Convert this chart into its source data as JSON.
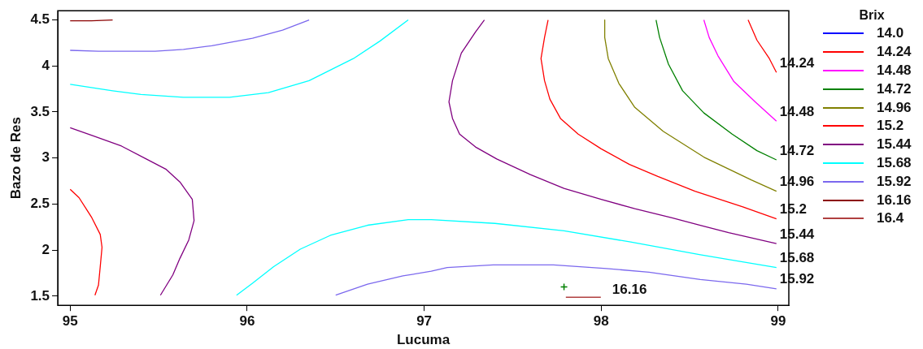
{
  "chart_data": {
    "type": "line",
    "xlabel": "Lucuma",
    "ylabel": "Bazo de Res",
    "legend_title": "Brix",
    "legend": "right",
    "grid": false,
    "xlim": [
      94.93,
      99.06
    ],
    "ylim": [
      1.4,
      4.6
    ],
    "xticks": [
      95,
      96,
      97,
      98,
      99
    ],
    "yticks": [
      1.5,
      2,
      2.5,
      3,
      3.5,
      4,
      4.5
    ],
    "series": [
      {
        "name": "14.0",
        "color": "#0000ff"
      },
      {
        "name": "14.24",
        "color": "#ff0000",
        "x": [
          98.83,
          98.88,
          98.95,
          98.99
        ],
        "values": [
          4.5,
          4.28,
          4.08,
          3.93
        ]
      },
      {
        "name": "14.48",
        "color": "#ff00ff",
        "x": [
          98.58,
          98.61,
          98.66,
          98.75,
          98.87,
          98.99
        ],
        "values": [
          4.5,
          4.31,
          4.11,
          3.83,
          3.61,
          3.4
        ]
      },
      {
        "name": "14.72",
        "color": "#008000",
        "x": [
          98.31,
          98.33,
          98.38,
          98.46,
          98.58,
          98.74,
          98.88,
          98.99
        ],
        "values": [
          4.5,
          4.31,
          4.02,
          3.73,
          3.49,
          3.26,
          3.08,
          2.98
        ]
      },
      {
        "name": "14.96",
        "color": "#808000",
        "x": [
          98.02,
          98.02,
          98.04,
          98.1,
          98.19,
          98.35,
          98.58,
          98.85,
          98.99
        ],
        "values": [
          4.5,
          4.31,
          4.08,
          3.81,
          3.55,
          3.29,
          3.01,
          2.76,
          2.64
        ]
      },
      {
        "name": "15.2",
        "color": "#ff0000",
        "x": [
          95.0,
          95.05,
          95.12,
          95.17,
          95.18,
          95.17,
          95.16,
          95.14,
          null,
          97.7,
          97.68,
          97.66,
          97.68,
          97.71,
          97.77,
          97.87,
          98.0,
          98.16,
          98.32,
          98.53,
          98.8,
          98.99
        ],
        "values": [
          2.66,
          2.57,
          2.36,
          2.17,
          2.03,
          1.82,
          1.62,
          1.51,
          null,
          4.5,
          4.31,
          4.08,
          3.84,
          3.64,
          3.43,
          3.26,
          3.1,
          2.93,
          2.8,
          2.64,
          2.47,
          2.34
        ]
      },
      {
        "name": "15.44",
        "color": "#800080",
        "x": [
          95.0,
          95.13,
          95.29,
          95.43,
          95.54,
          95.62,
          95.69,
          95.7,
          95.67,
          95.62,
          95.58,
          95.51,
          null,
          97.34,
          97.29,
          97.21,
          97.16,
          97.14,
          97.16,
          97.2,
          97.29,
          97.41,
          97.6,
          97.79,
          98.0,
          98.19,
          98.4,
          98.56,
          98.72,
          98.99
        ],
        "values": [
          3.33,
          3.24,
          3.13,
          2.99,
          2.88,
          2.74,
          2.55,
          2.32,
          2.11,
          1.91,
          1.73,
          1.51,
          null,
          4.5,
          4.37,
          4.14,
          3.84,
          3.61,
          3.43,
          3.26,
          3.12,
          2.99,
          2.82,
          2.67,
          2.55,
          2.45,
          2.35,
          2.27,
          2.19,
          2.07
        ]
      },
      {
        "name": "15.68",
        "color": "#00ffff",
        "x": [
          95.0,
          95.24,
          95.4,
          95.64,
          95.9,
          96.12,
          96.35,
          96.6,
          96.75,
          96.91,
          null,
          95.94,
          96.03,
          96.15,
          96.3,
          96.47,
          96.68,
          96.91,
          97.04,
          97.4,
          97.79,
          98.16,
          98.56,
          98.99
        ],
        "values": [
          3.8,
          3.73,
          3.69,
          3.66,
          3.66,
          3.71,
          3.84,
          4.08,
          4.27,
          4.5,
          null,
          1.51,
          1.64,
          1.82,
          2.01,
          2.16,
          2.27,
          2.33,
          2.33,
          2.29,
          2.21,
          2.09,
          1.95,
          1.81
        ]
      },
      {
        "name": "15.92",
        "color": "#7b68ee",
        "x": [
          95.0,
          95.16,
          95.48,
          95.64,
          95.8,
          96.03,
          96.2,
          96.35,
          null,
          96.5,
          96.68,
          96.88,
          97.04,
          97.13,
          97.39,
          97.73,
          98.03,
          98.27,
          98.56,
          98.82,
          98.99
        ],
        "values": [
          4.17,
          4.16,
          4.16,
          4.18,
          4.22,
          4.3,
          4.39,
          4.5,
          null,
          1.51,
          1.63,
          1.72,
          1.77,
          1.81,
          1.84,
          1.84,
          1.8,
          1.76,
          1.68,
          1.63,
          1.58
        ]
      },
      {
        "name": "16.16",
        "color": "#8b0000",
        "x": [
          95.0,
          95.12,
          95.24
        ],
        "values": [
          4.49,
          4.49,
          4.5
        ]
      },
      {
        "name": "16.4",
        "color": "#b04040"
      },
      {
        "type": "scatter",
        "marker": "cross",
        "color": "#008000",
        "x": [
          97.79
        ],
        "values": [
          1.6
        ]
      }
    ],
    "annotations": [
      "16.16"
    ]
  }
}
